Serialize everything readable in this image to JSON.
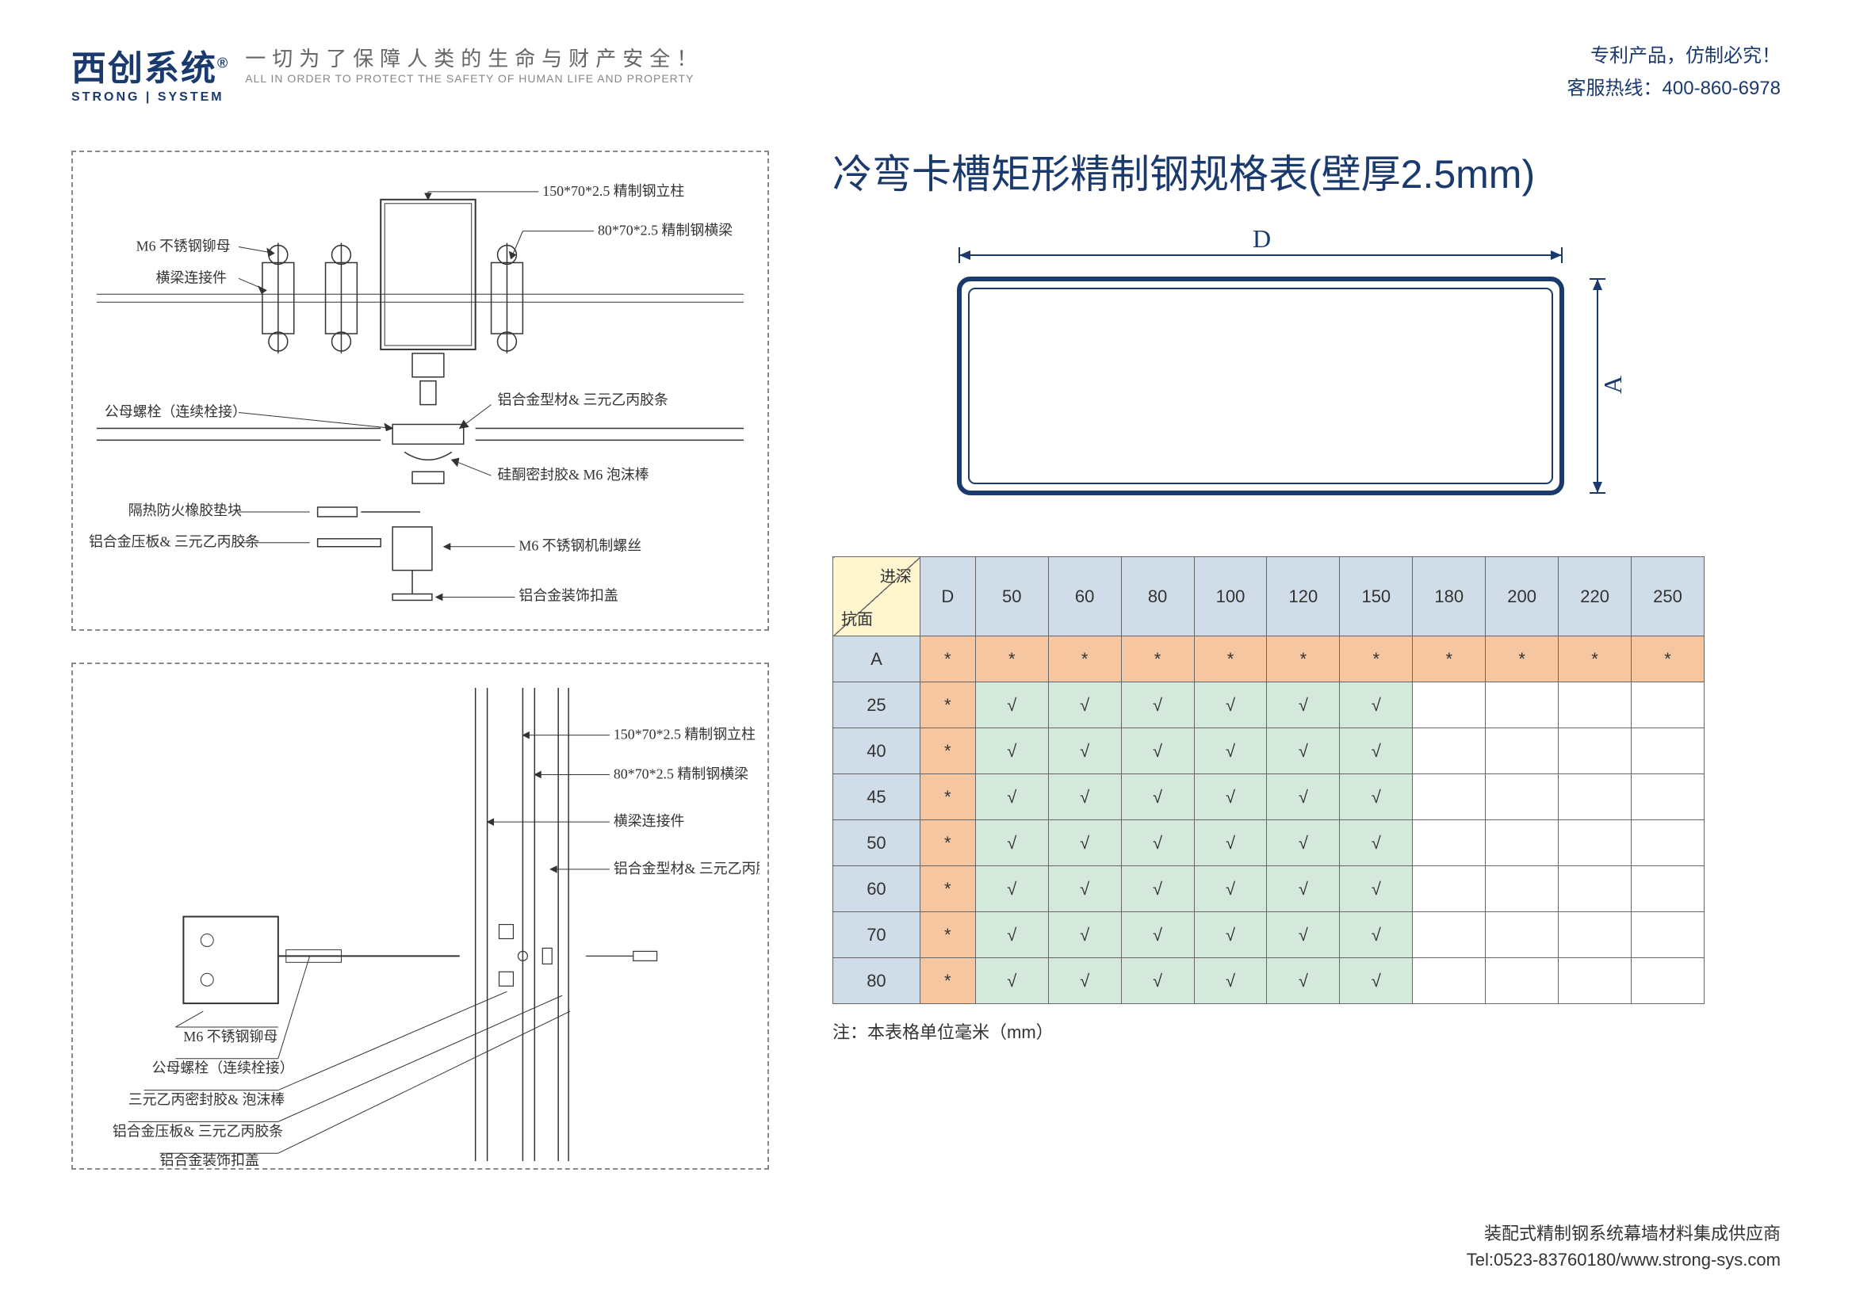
{
  "header": {
    "logo_cn": "西创系统",
    "logo_reg": "®",
    "logo_en": "STRONG | SYSTEM",
    "slogan_cn": "一切为了保障人类的生命与财产安全！",
    "slogan_en": "ALL IN ORDER TO PROTECT THE SAFETY OF HUMAN LIFE AND PROPERTY",
    "right_line1": "专利产品，仿制必究！",
    "right_line2": "客服热线：400-860-6978"
  },
  "diagram1": {
    "labels": {
      "l1": "M6 不锈钢铆母",
      "l2": "横梁连接件",
      "l3": "公母螺栓（连续栓接）",
      "l4": "隔热防火橡胶垫块",
      "l5": "铝合金压板& 三元乙丙胶条",
      "r1": "150*70*2.5 精制钢立柱",
      "r2": "80*70*2.5 精制钢横梁",
      "r3": "铝合金型材& 三元乙丙胶条",
      "r4": "硅酮密封胶& M6 泡沫棒",
      "r5": "M6 不锈钢机制螺丝",
      "r6": "铝合金装饰扣盖"
    }
  },
  "diagram2": {
    "labels": {
      "r1": "150*70*2.5 精制钢立柱",
      "r2": "80*70*2.5 精制钢横梁",
      "r3": "横梁连接件",
      "r4": "铝合金型材& 三元乙丙胶条",
      "l1": "M6 不锈钢铆母",
      "l2": "公母螺栓（连续栓接）",
      "l3": "三元乙丙密封胶& 泡沫棒",
      "l4": "铝合金压板& 三元乙丙胶条",
      "l5": "铝合金装饰扣盖"
    }
  },
  "right": {
    "title": "冷弯卡槽矩形精制钢规格表(壁厚2.5mm)",
    "dim_d": "D",
    "dim_a": "A",
    "note": "注：本表格单位毫米（mm）"
  },
  "table": {
    "corner_top": "进深",
    "corner_bot": "抗面",
    "columns": [
      "D",
      "50",
      "60",
      "80",
      "100",
      "120",
      "150",
      "180",
      "200",
      "220",
      "250"
    ],
    "rows": [
      {
        "label": "A",
        "cells": [
          "*",
          "*",
          "*",
          "*",
          "*",
          "*",
          "*",
          "*",
          "*",
          "*",
          "*"
        ],
        "style": [
          "o",
          "o",
          "o",
          "o",
          "o",
          "o",
          "o",
          "o",
          "o",
          "o",
          "o"
        ]
      },
      {
        "label": "25",
        "cells": [
          "*",
          "√",
          "√",
          "√",
          "√",
          "√",
          "√",
          "",
          "",
          "",
          ""
        ],
        "style": [
          "o",
          "g",
          "g",
          "g",
          "g",
          "g",
          "g",
          "w",
          "w",
          "w",
          "w"
        ]
      },
      {
        "label": "40",
        "cells": [
          "*",
          "√",
          "√",
          "√",
          "√",
          "√",
          "√",
          "",
          "",
          "",
          ""
        ],
        "style": [
          "o",
          "g",
          "g",
          "g",
          "g",
          "g",
          "g",
          "w",
          "w",
          "w",
          "w"
        ]
      },
      {
        "label": "45",
        "cells": [
          "*",
          "√",
          "√",
          "√",
          "√",
          "√",
          "√",
          "",
          "",
          "",
          ""
        ],
        "style": [
          "o",
          "g",
          "g",
          "g",
          "g",
          "g",
          "g",
          "w",
          "w",
          "w",
          "w"
        ]
      },
      {
        "label": "50",
        "cells": [
          "*",
          "√",
          "√",
          "√",
          "√",
          "√",
          "√",
          "",
          "",
          "",
          ""
        ],
        "style": [
          "o",
          "g",
          "g",
          "g",
          "g",
          "g",
          "g",
          "w",
          "w",
          "w",
          "w"
        ]
      },
      {
        "label": "60",
        "cells": [
          "*",
          "√",
          "√",
          "√",
          "√",
          "√",
          "√",
          "",
          "",
          "",
          ""
        ],
        "style": [
          "o",
          "g",
          "g",
          "g",
          "g",
          "g",
          "g",
          "w",
          "w",
          "w",
          "w"
        ]
      },
      {
        "label": "70",
        "cells": [
          "*",
          "√",
          "√",
          "√",
          "√",
          "√",
          "√",
          "",
          "",
          "",
          ""
        ],
        "style": [
          "o",
          "g",
          "g",
          "g",
          "g",
          "g",
          "g",
          "w",
          "w",
          "w",
          "w"
        ]
      },
      {
        "label": "80",
        "cells": [
          "*",
          "√",
          "√",
          "√",
          "√",
          "√",
          "√",
          "",
          "",
          "",
          ""
        ],
        "style": [
          "o",
          "g",
          "g",
          "g",
          "g",
          "g",
          "g",
          "w",
          "w",
          "w",
          "w"
        ]
      }
    ],
    "colors": {
      "o": "#f5c6a0",
      "g": "#d5e8dc",
      "w": "#ffffff",
      "header": "#d0dce8",
      "corner": "#fff6d0"
    }
  },
  "footer": {
    "line1": "装配式精制钢系统幕墙材料集成供应商",
    "line2": "Tel:0523-83760180/www.strong-sys.com"
  },
  "section": {
    "outer_color": "#1a3a6e",
    "stroke_width": 6,
    "d_width": 760,
    "a_height": 300,
    "radius": 14
  }
}
